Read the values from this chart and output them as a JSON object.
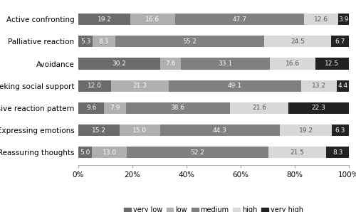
{
  "categories": [
    "Active confronting",
    "Palliative reaction",
    "Avoidance",
    "Seeking social support",
    "Passive reaction pattern",
    "Expressing emotions",
    "Reassuring thoughts"
  ],
  "series": {
    "very low": [
      19.2,
      5.3,
      30.2,
      12.0,
      9.6,
      15.2,
      5.0
    ],
    "low": [
      16.6,
      8.3,
      7.6,
      21.3,
      7.9,
      15.0,
      13.0
    ],
    "medium": [
      47.7,
      55.2,
      33.1,
      49.1,
      38.6,
      44.3,
      52.2
    ],
    "high": [
      12.6,
      24.5,
      16.6,
      13.2,
      21.6,
      19.2,
      21.5
    ],
    "very high": [
      3.9,
      6.7,
      12.5,
      4.4,
      22.3,
      6.3,
      8.3
    ]
  },
  "colors": {
    "very low": "#6b6b6b",
    "low": "#b0b0b0",
    "medium": "#808080",
    "high": "#d8d8d8",
    "very high": "#222222"
  },
  "text_colors": {
    "very low": "#ffffff",
    "low": "#ffffff",
    "medium": "#ffffff",
    "high": "#555555",
    "very high": "#ffffff"
  },
  "legend_order": [
    "very low",
    "low",
    "medium",
    "high",
    "very high"
  ],
  "bar_height": 0.52,
  "figsize": [
    5.0,
    2.98
  ],
  "dpi": 100,
  "xlabel_fontsize": 7.5,
  "label_fontsize": 6.5,
  "ytick_fontsize": 7.5,
  "legend_fontsize": 7,
  "background_color": "#ffffff"
}
